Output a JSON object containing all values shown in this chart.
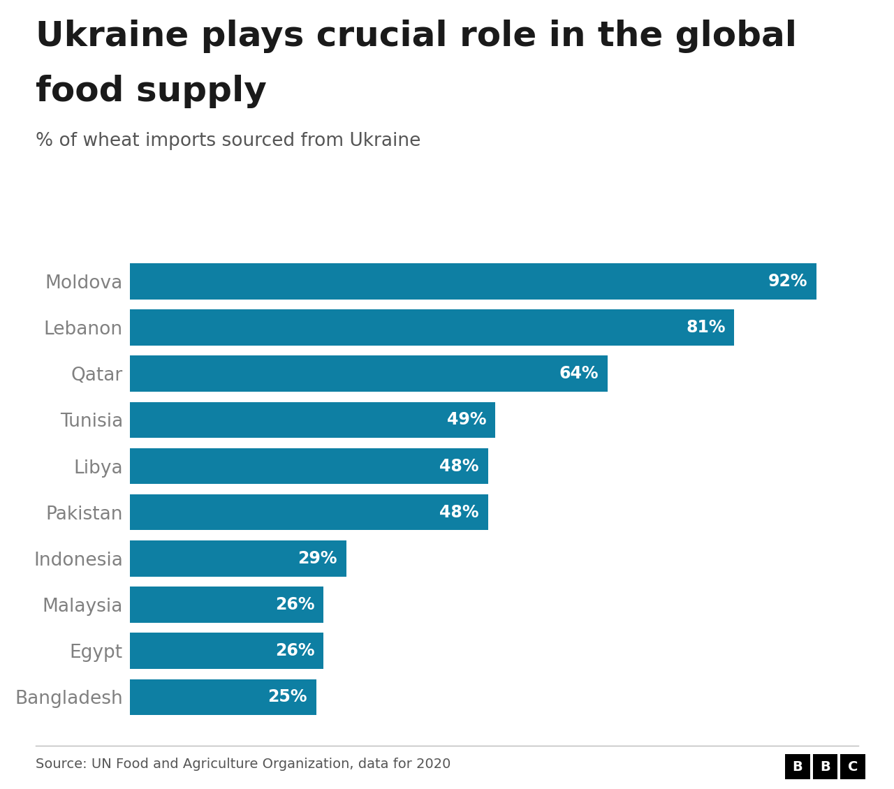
{
  "title_line1": "Ukraine plays crucial role in the global",
  "title_line2": "food supply",
  "subtitle": "% of wheat imports sourced from Ukraine",
  "source": "Source: UN Food and Agriculture Organization, data for 2020",
  "categories": [
    "Moldova",
    "Lebanon",
    "Qatar",
    "Tunisia",
    "Libya",
    "Pakistan",
    "Indonesia",
    "Malaysia",
    "Egypt",
    "Bangladesh"
  ],
  "values": [
    92,
    81,
    64,
    49,
    48,
    48,
    29,
    26,
    26,
    25
  ],
  "bar_color": "#0e7fa3",
  "label_color": "#ffffff",
  "title_color": "#1a1a1a",
  "subtitle_color": "#555555",
  "ylabel_color": "#808080",
  "source_color": "#555555",
  "background_color": "#ffffff",
  "bar_label_fontsize": 17,
  "title_fontsize": 36,
  "subtitle_fontsize": 19,
  "ylabel_fontsize": 19,
  "source_fontsize": 14,
  "xlim": [
    0,
    100
  ]
}
